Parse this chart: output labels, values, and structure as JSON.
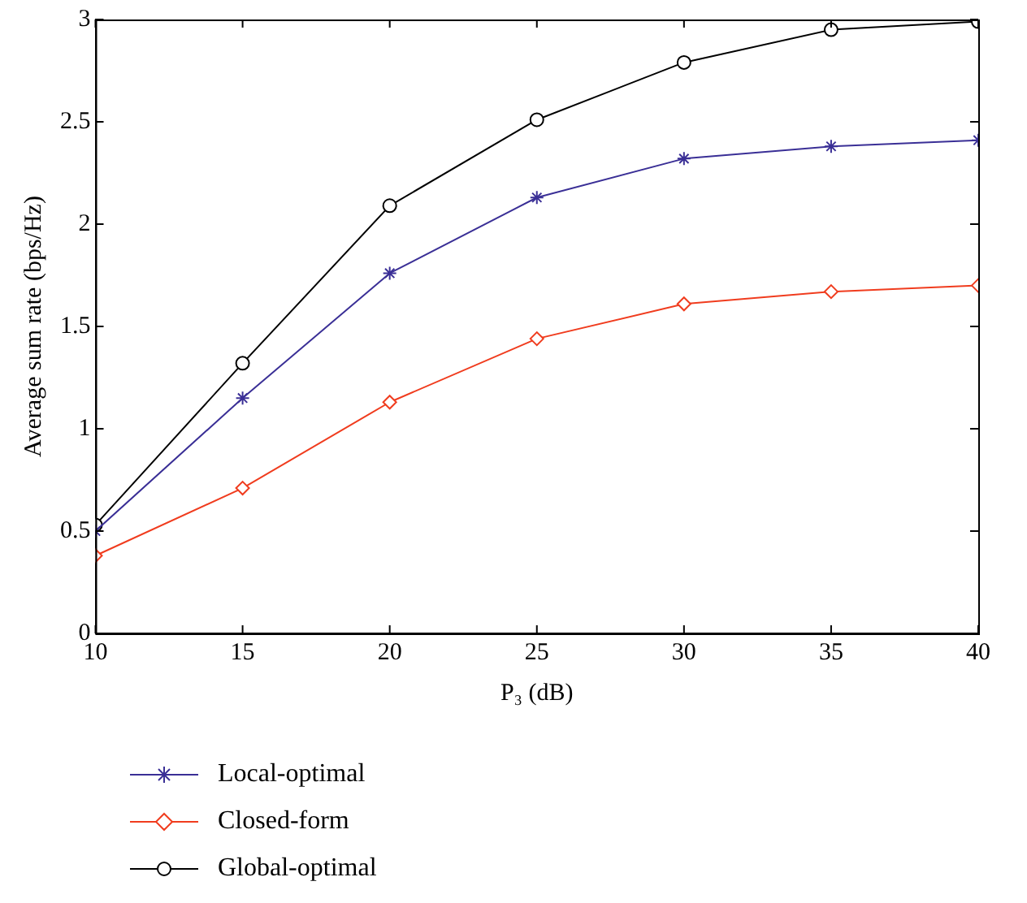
{
  "chart_data": {
    "type": "line",
    "xlabel": "P₃ (dB)",
    "ylabel": "Average sum rate (bps/Hz)",
    "x": [
      10,
      15,
      20,
      25,
      30,
      35,
      40
    ],
    "series": [
      {
        "name": "Local-optimal",
        "color": "#3a2f96",
        "marker": "cross",
        "values": [
          0.5,
          1.15,
          1.76,
          2.13,
          2.32,
          2.38,
          2.41
        ]
      },
      {
        "name": "Closed-form",
        "color": "#f03c1e",
        "marker": "diamond",
        "values": [
          0.38,
          0.71,
          1.13,
          1.44,
          1.61,
          1.67,
          1.7
        ]
      },
      {
        "name": "Global-optimal",
        "color": "#000000",
        "marker": "circle",
        "values": [
          0.53,
          1.32,
          2.09,
          2.51,
          2.79,
          2.95,
          2.99
        ]
      }
    ],
    "xlim": [
      10,
      40
    ],
    "xticks": [
      10,
      15,
      20,
      25,
      30,
      35,
      40
    ],
    "ylim": [
      0,
      3
    ],
    "yticks": [
      0,
      0.5,
      1,
      1.5,
      2,
      2.5,
      3
    ],
    "grid": false,
    "legend": "bottom left",
    "line_style": "solid"
  }
}
